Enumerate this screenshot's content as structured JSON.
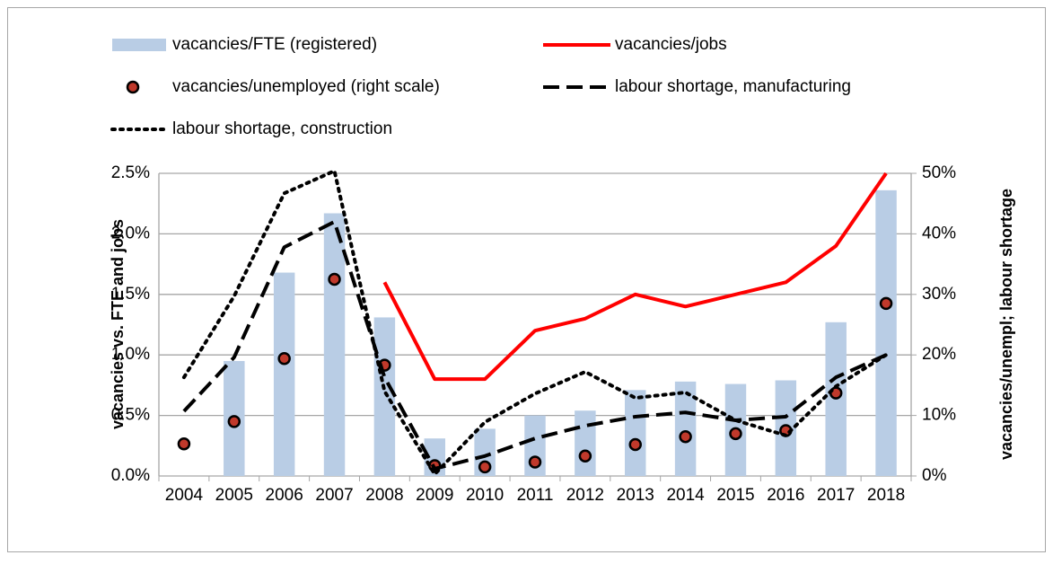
{
  "chart_data": {
    "type": "combo",
    "categories": [
      "2004",
      "2005",
      "2006",
      "2007",
      "2008",
      "2009",
      "2010",
      "2011",
      "2012",
      "2013",
      "2014",
      "2015",
      "2016",
      "2017",
      "2018"
    ],
    "y_label": "vacancies vs. FTE and jobs",
    "y2_label": "vacancies/unempl; labour shortage",
    "ylim": [
      0,
      2.5
    ],
    "yticks": [
      {
        "value": 0,
        "label": "0.0%"
      },
      {
        "value": 0.5,
        "label": "0.5%"
      },
      {
        "value": 1,
        "label": "1.0%"
      },
      {
        "value": 1.5,
        "label": "1.5%"
      },
      {
        "value": 2,
        "label": "2.0%"
      },
      {
        "value": 2.5,
        "label": "2.5%"
      }
    ],
    "y2lim": [
      0,
      50
    ],
    "y2ticks": [
      {
        "value": 0,
        "label": "0%"
      },
      {
        "value": 10,
        "label": "10%"
      },
      {
        "value": 20,
        "label": "20%"
      },
      {
        "value": 30,
        "label": "30%"
      },
      {
        "value": 40,
        "label": "40%"
      },
      {
        "value": 50,
        "label": "50%"
      }
    ],
    "grid": true,
    "legend": "top",
    "series": [
      {
        "name": "vacancies/FTE (registered)",
        "type": "bar",
        "color": "#b9cde5",
        "values": [
          null,
          0.95,
          1.68,
          2.17,
          1.31,
          0.31,
          0.39,
          0.5,
          0.54,
          0.71,
          0.78,
          0.76,
          0.79,
          1.27,
          2.36
        ]
      },
      {
        "name": "vacancies/jobs",
        "type": "line",
        "style": "solid",
        "color": "#ff0000",
        "values": [
          null,
          null,
          null,
          null,
          1.6,
          0.8,
          0.8,
          1.2,
          1.3,
          1.5,
          1.4,
          1.5,
          1.6,
          1.9,
          2.5
        ]
      },
      {
        "name": "vacancies/unemployed (right scale)",
        "type": "scatter",
        "axis": "y2",
        "color": "#c0392b",
        "values": [
          5.3,
          9,
          19.4,
          32.5,
          18.3,
          1.7,
          1.5,
          2.3,
          3.3,
          5.2,
          6.5,
          7,
          7.5,
          13.7,
          28.5
        ]
      },
      {
        "name": "labour shortage, manufacturing",
        "type": "line",
        "style": "dashed",
        "axis": "y2",
        "color": "#000000",
        "values": [
          10.7,
          19.6,
          37.8,
          42,
          16.3,
          1.2,
          3.3,
          6.2,
          8.3,
          9.8,
          10.5,
          9.2,
          9.8,
          16.3,
          20
        ]
      },
      {
        "name": "labour shortage, construction",
        "type": "line",
        "style": "dotted",
        "axis": "y2",
        "color": "#000000",
        "values": [
          16.3,
          29.7,
          46.7,
          50.4,
          14,
          0.3,
          8.9,
          13.6,
          17.2,
          12.9,
          13.8,
          9.2,
          6.7,
          14.8,
          20
        ]
      }
    ]
  }
}
